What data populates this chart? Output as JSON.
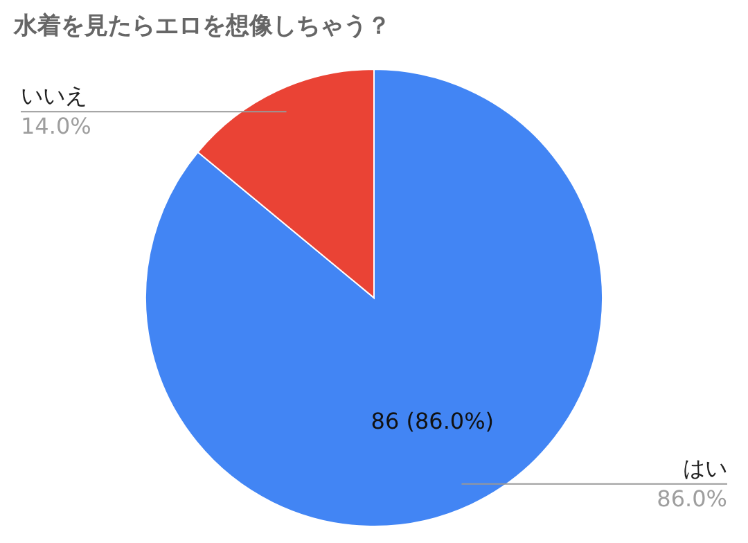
{
  "chart_data": {
    "type": "pie",
    "title": "水着を見たらエロを想像しちゃう？",
    "categories": [
      "はい",
      "いいえ"
    ],
    "values": [
      86,
      14
    ],
    "colors": [
      "#4285f4",
      "#ea4335"
    ],
    "value_labels": [
      "86 (86.0%)",
      null
    ],
    "annotations": [
      "86.0%",
      "14.0%"
    ]
  }
}
